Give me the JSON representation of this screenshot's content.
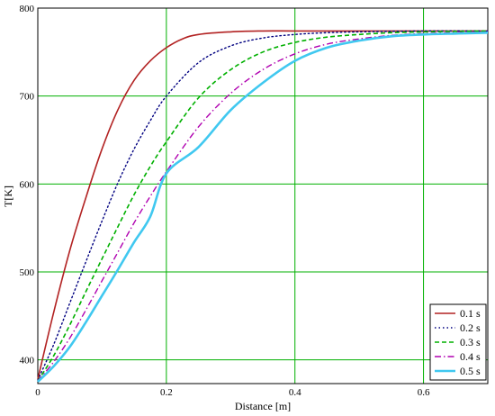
{
  "chart_data": {
    "type": "line",
    "xlabel": "Distance [m]",
    "ylabel": "T[K]",
    "xlim": [
      0,
      0.7
    ],
    "ylim": [
      373,
      800
    ],
    "x_ticks": [
      "0",
      "0.2",
      "0.4",
      "0.6"
    ],
    "y_ticks": [
      "400",
      "500",
      "600",
      "700",
      "800"
    ],
    "grid": true,
    "grid_color": "#00b000",
    "legend_position": "bottom-right",
    "series": [
      {
        "name": "0.1 s",
        "color": "#b22222",
        "style": "solid",
        "x": [
          0,
          0.025,
          0.05,
          0.075,
          0.1,
          0.125,
          0.15,
          0.175,
          0.2,
          0.225,
          0.25,
          0.3,
          0.35,
          0.4,
          0.5,
          0.6,
          0.7
        ],
        "y": [
          378,
          455,
          525,
          585,
          640,
          685,
          718,
          740,
          755,
          765,
          770,
          773,
          774,
          774,
          774,
          774,
          774
        ]
      },
      {
        "name": "0.2 s",
        "color": "#000080",
        "style": "dotted",
        "x": [
          0,
          0.025,
          0.05,
          0.075,
          0.1,
          0.125,
          0.15,
          0.175,
          0.2,
          0.25,
          0.3,
          0.35,
          0.4,
          0.45,
          0.5,
          0.6,
          0.7
        ],
        "y": [
          377,
          418,
          465,
          512,
          558,
          602,
          640,
          672,
          700,
          738,
          757,
          766,
          770,
          772,
          773,
          774,
          774
        ]
      },
      {
        "name": "0.3 s",
        "color": "#00b000",
        "style": "dashed",
        "x": [
          0,
          0.025,
          0.05,
          0.075,
          0.1,
          0.125,
          0.15,
          0.175,
          0.2,
          0.25,
          0.3,
          0.35,
          0.4,
          0.45,
          0.5,
          0.55,
          0.6,
          0.7
        ],
        "y": [
          376,
          405,
          440,
          478,
          515,
          552,
          588,
          620,
          648,
          698,
          730,
          750,
          761,
          767,
          770,
          772,
          773,
          774
        ]
      },
      {
        "name": "0.4 s",
        "color": "#b000b0",
        "style": "dashdot",
        "x": [
          0,
          0.025,
          0.05,
          0.075,
          0.1,
          0.125,
          0.15,
          0.175,
          0.2,
          0.25,
          0.3,
          0.35,
          0.4,
          0.45,
          0.5,
          0.55,
          0.6,
          0.65,
          0.7
        ],
        "y": [
          376,
          398,
          425,
          457,
          490,
          523,
          556,
          586,
          614,
          665,
          703,
          730,
          748,
          759,
          765,
          769,
          771,
          772,
          773
        ]
      },
      {
        "name": "0.5 s",
        "color": "#40c8f0",
        "style": "solid",
        "x": [
          0,
          0.025,
          0.05,
          0.075,
          0.1,
          0.125,
          0.15,
          0.175,
          0.2,
          0.25,
          0.3,
          0.35,
          0.4,
          0.45,
          0.5,
          0.55,
          0.6,
          0.65,
          0.7
        ],
        "y": [
          375,
          393,
          415,
          443,
          473,
          503,
          534,
          563,
          612,
          642,
          684,
          715,
          740,
          755,
          763,
          768,
          770,
          771,
          772
        ]
      }
    ]
  }
}
